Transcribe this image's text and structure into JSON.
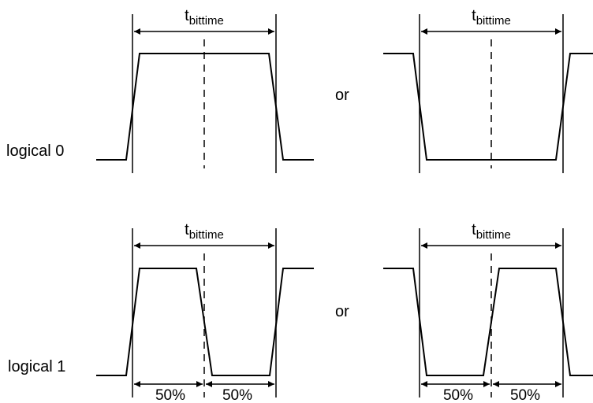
{
  "labels": {
    "logical_0": "logical 0",
    "logical_1": "logical 1",
    "or": "or",
    "t_symbol": "t",
    "t_subscript": "bittime",
    "half_period": "50%"
  }
}
